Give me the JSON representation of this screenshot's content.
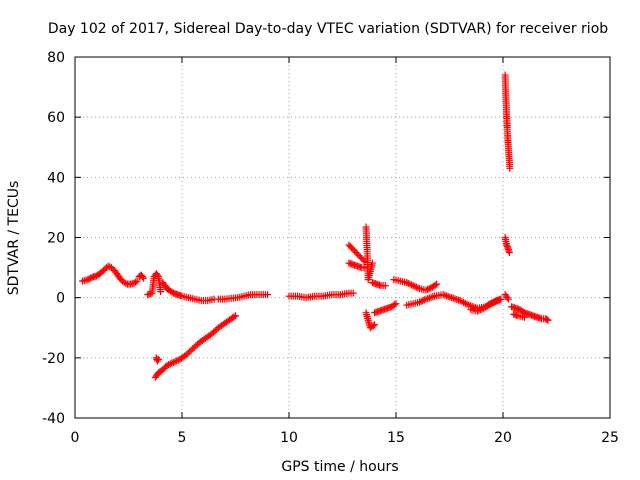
{
  "chart_data": {
    "type": "scatter",
    "title": "Day 102 of 2017, Sidereal Day-to-day VTEC variation (SDTVAR) for receiver riob",
    "xlabel": "GPS time / hours",
    "ylabel": "SDTVAR / TECUs",
    "xlim": [
      0,
      25
    ],
    "ylim": [
      -40,
      80
    ],
    "xticks": [
      0,
      5,
      10,
      15,
      20,
      25
    ],
    "yticks": [
      -40,
      -20,
      0,
      20,
      40,
      60,
      80
    ],
    "grid": true,
    "marker": "+",
    "marker_color": "#ff0000",
    "series": [
      {
        "name": "SDTVAR",
        "segments": [
          {
            "x": [
              0.35,
              0.6,
              0.8,
              1.0,
              1.2,
              1.4,
              1.55,
              1.7,
              1.85,
              2.0,
              2.15,
              2.3,
              2.45,
              2.6,
              2.75,
              2.9
            ],
            "y": [
              5.5,
              6,
              6.8,
              7.2,
              8.2,
              9.5,
              10.5,
              10,
              9,
              7.5,
              6,
              5,
              4.5,
              4.5,
              4.8,
              5.5
            ]
          },
          {
            "x": [
              3.0,
              3.1,
              3.2
            ],
            "y": [
              7,
              7.5,
              6.5
            ]
          },
          {
            "x": [
              3.4,
              3.6,
              3.7,
              3.8,
              3.85,
              3.9,
              4.0
            ],
            "y": [
              1,
              1.5,
              7,
              8,
              7.5,
              7,
              2
            ]
          },
          {
            "x": [
              3.8,
              3.85,
              3.9
            ],
            "y": [
              -20,
              -21,
              -20.5
            ]
          },
          {
            "x": [
              4.1,
              4.2,
              4.3,
              4.4,
              4.6,
              4.8,
              5.0,
              5.3,
              5.6,
              5.9,
              6.2,
              6.5
            ],
            "y": [
              5,
              4,
              3,
              2.5,
              1.5,
              1,
              0.5,
              0,
              -0.5,
              -1,
              -1,
              -0.5
            ]
          },
          {
            "x": [
              6.7,
              7.0,
              7.3,
              7.6,
              7.9,
              8.2,
              8.5,
              8.8,
              9.0
            ],
            "y": [
              -0.5,
              -0.5,
              -0.2,
              0,
              0.5,
              1,
              1,
              1,
              1
            ]
          },
          {
            "x": [
              3.75,
              3.9,
              4.1,
              4.3,
              4.6,
              4.9,
              5.2,
              5.5,
              5.8,
              6.1,
              6.4,
              6.7,
              7.0,
              7.3,
              7.5
            ],
            "y": [
              -26.5,
              -25,
              -24,
              -22.5,
              -21.5,
              -20.5,
              -19,
              -17,
              -15,
              -13.5,
              -12,
              -10,
              -8.5,
              -7,
              -6
            ]
          },
          {
            "x": [
              10.0,
              10.4,
              10.8,
              11.2,
              11.6,
              12.0,
              12.4,
              12.8,
              13.0
            ],
            "y": [
              0.5,
              0.5,
              0,
              0.5,
              0.5,
              1,
              1,
              1.5,
              1.5
            ]
          },
          {
            "x": [
              12.8,
              13.0,
              13.2,
              13.4,
              13.55
            ],
            "y": [
              17.5,
              16,
              14.5,
              13,
              12
            ]
          },
          {
            "x": [
              12.8,
              13.0,
              13.2,
              13.4,
              13.5
            ],
            "y": [
              11.5,
              11,
              10.5,
              10,
              10
            ]
          },
          {
            "x": [
              13.6,
              13.65,
              13.7,
              13.9
            ],
            "y": [
              23.5,
              16,
              6,
              11.5
            ]
          },
          {
            "x": [
              13.6,
              13.8,
              14.0
            ],
            "y": [
              -5,
              -10,
              -9
            ]
          },
          {
            "x": [
              13.9,
              14.1,
              14.3,
              14.5
            ],
            "y": [
              5,
              4.5,
              4,
              4
            ]
          },
          {
            "x": [
              14.0,
              14.2,
              14.4,
              14.6,
              14.8,
              15.0
            ],
            "y": [
              -5,
              -4.5,
              -4,
              -3.5,
              -3,
              -2
            ]
          },
          {
            "x": [
              14.9,
              15.2,
              15.5,
              15.8,
              16.1,
              16.4,
              16.7,
              16.9
            ],
            "y": [
              6,
              5.5,
              5,
              4,
              3,
              2.5,
              3.5,
              4.5
            ]
          },
          {
            "x": [
              15.5,
              15.8,
              16.1,
              16.4,
              16.8,
              17.2,
              17.6,
              18.0,
              18.4,
              18.8,
              19.2,
              19.6,
              19.9
            ],
            "y": [
              -2.5,
              -2,
              -1.5,
              -0.5,
              0.5,
              1,
              0,
              -1,
              -2.5,
              -3.5,
              -3,
              -1.5,
              -0.5
            ]
          },
          {
            "x": [
              18.5,
              18.8,
              19.1,
              19.4,
              19.7,
              19.9
            ],
            "y": [
              -4,
              -4.5,
              -3.5,
              -2,
              -1,
              -0.5
            ]
          },
          {
            "x": [
              20.1,
              20.12,
              20.14,
              20.16,
              20.18,
              20.2,
              20.22,
              20.24,
              20.26,
              20.28,
              20.3,
              20.32
            ],
            "y": [
              74,
              70,
              66,
              62,
              59,
              56,
              54,
              51,
              49,
              47,
              45,
              43
            ]
          },
          {
            "x": [
              20.1,
              20.15,
              20.2,
              20.25,
              20.3
            ],
            "y": [
              20,
              18,
              17,
              16,
              15
            ]
          },
          {
            "x": [
              20.1,
              20.25
            ],
            "y": [
              1,
              -0.5
            ]
          },
          {
            "x": [
              20.4,
              20.6,
              20.8,
              21.0,
              21.2,
              21.4,
              21.6,
              21.8,
              22.0,
              22.1
            ],
            "y": [
              -3,
              -3.5,
              -4,
              -5,
              -5.5,
              -6,
              -6.5,
              -7,
              -7,
              -7.5
            ]
          },
          {
            "x": [
              20.5,
              20.7,
              21.0
            ],
            "y": [
              -5.5,
              -6,
              -6.5
            ]
          }
        ]
      }
    ]
  }
}
